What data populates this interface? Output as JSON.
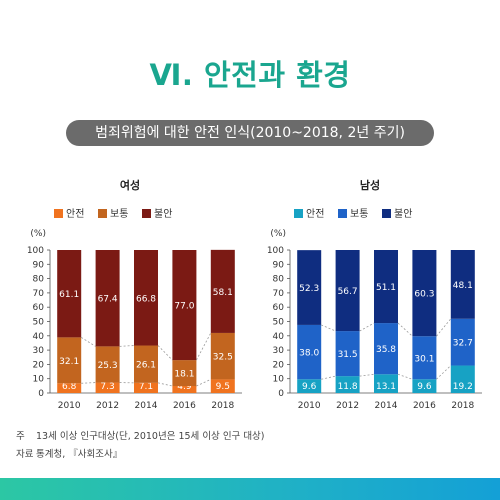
{
  "page": {
    "title": "Ⅵ. 안전과 환경",
    "subtitle": "범죄위험에 대한 안전 인식(2010~2018, 2년 주기)",
    "note_label": "주",
    "note_text": "13세 이상 인구대상(단, 2010년은 15세 이상 인구 대상)",
    "source_label": "자료",
    "source_text": "통계청, 『사회조사』"
  },
  "chart_data": [
    {
      "type": "bar",
      "stacked": true,
      "title": "여성",
      "ylabel": "(%)",
      "ylim": [
        0,
        100
      ],
      "yticks": [
        0,
        10,
        20,
        30,
        40,
        50,
        60,
        70,
        80,
        90,
        100
      ],
      "categories": [
        "2010",
        "2012",
        "2014",
        "2016",
        "2018"
      ],
      "legend_position": "top-center",
      "series": [
        {
          "name": "안전",
          "color": "#f0731f",
          "label_color": "#ffffff",
          "values": [
            6.8,
            7.3,
            7.1,
            4.9,
            9.5
          ]
        },
        {
          "name": "보통",
          "color": "#c2651f",
          "label_color": "#ffffff",
          "values": [
            32.1,
            25.3,
            26.1,
            18.1,
            32.5
          ]
        },
        {
          "name": "불안",
          "color": "#7b1a14",
          "label_color": "#ffffff",
          "values": [
            61.1,
            67.4,
            66.8,
            77.0,
            58.1
          ]
        }
      ]
    },
    {
      "type": "bar",
      "stacked": true,
      "title": "남성",
      "ylabel": "(%)",
      "ylim": [
        0,
        100
      ],
      "yticks": [
        0,
        10,
        20,
        30,
        40,
        50,
        60,
        70,
        80,
        90,
        100
      ],
      "categories": [
        "2010",
        "2012",
        "2014",
        "2016",
        "2018"
      ],
      "legend_position": "top-center",
      "series": [
        {
          "name": "안전",
          "color": "#17a2c4",
          "label_color": "#ffffff",
          "values": [
            9.6,
            11.8,
            13.1,
            9.6,
            19.2
          ]
        },
        {
          "name": "보통",
          "color": "#1f63c8",
          "label_color": "#ffffff",
          "values": [
            38.0,
            31.5,
            35.8,
            30.1,
            32.7
          ]
        },
        {
          "name": "불안",
          "color": "#0f2d80",
          "label_color": "#ffffff",
          "values": [
            52.3,
            56.7,
            51.1,
            60.3,
            48.1
          ]
        }
      ]
    }
  ]
}
